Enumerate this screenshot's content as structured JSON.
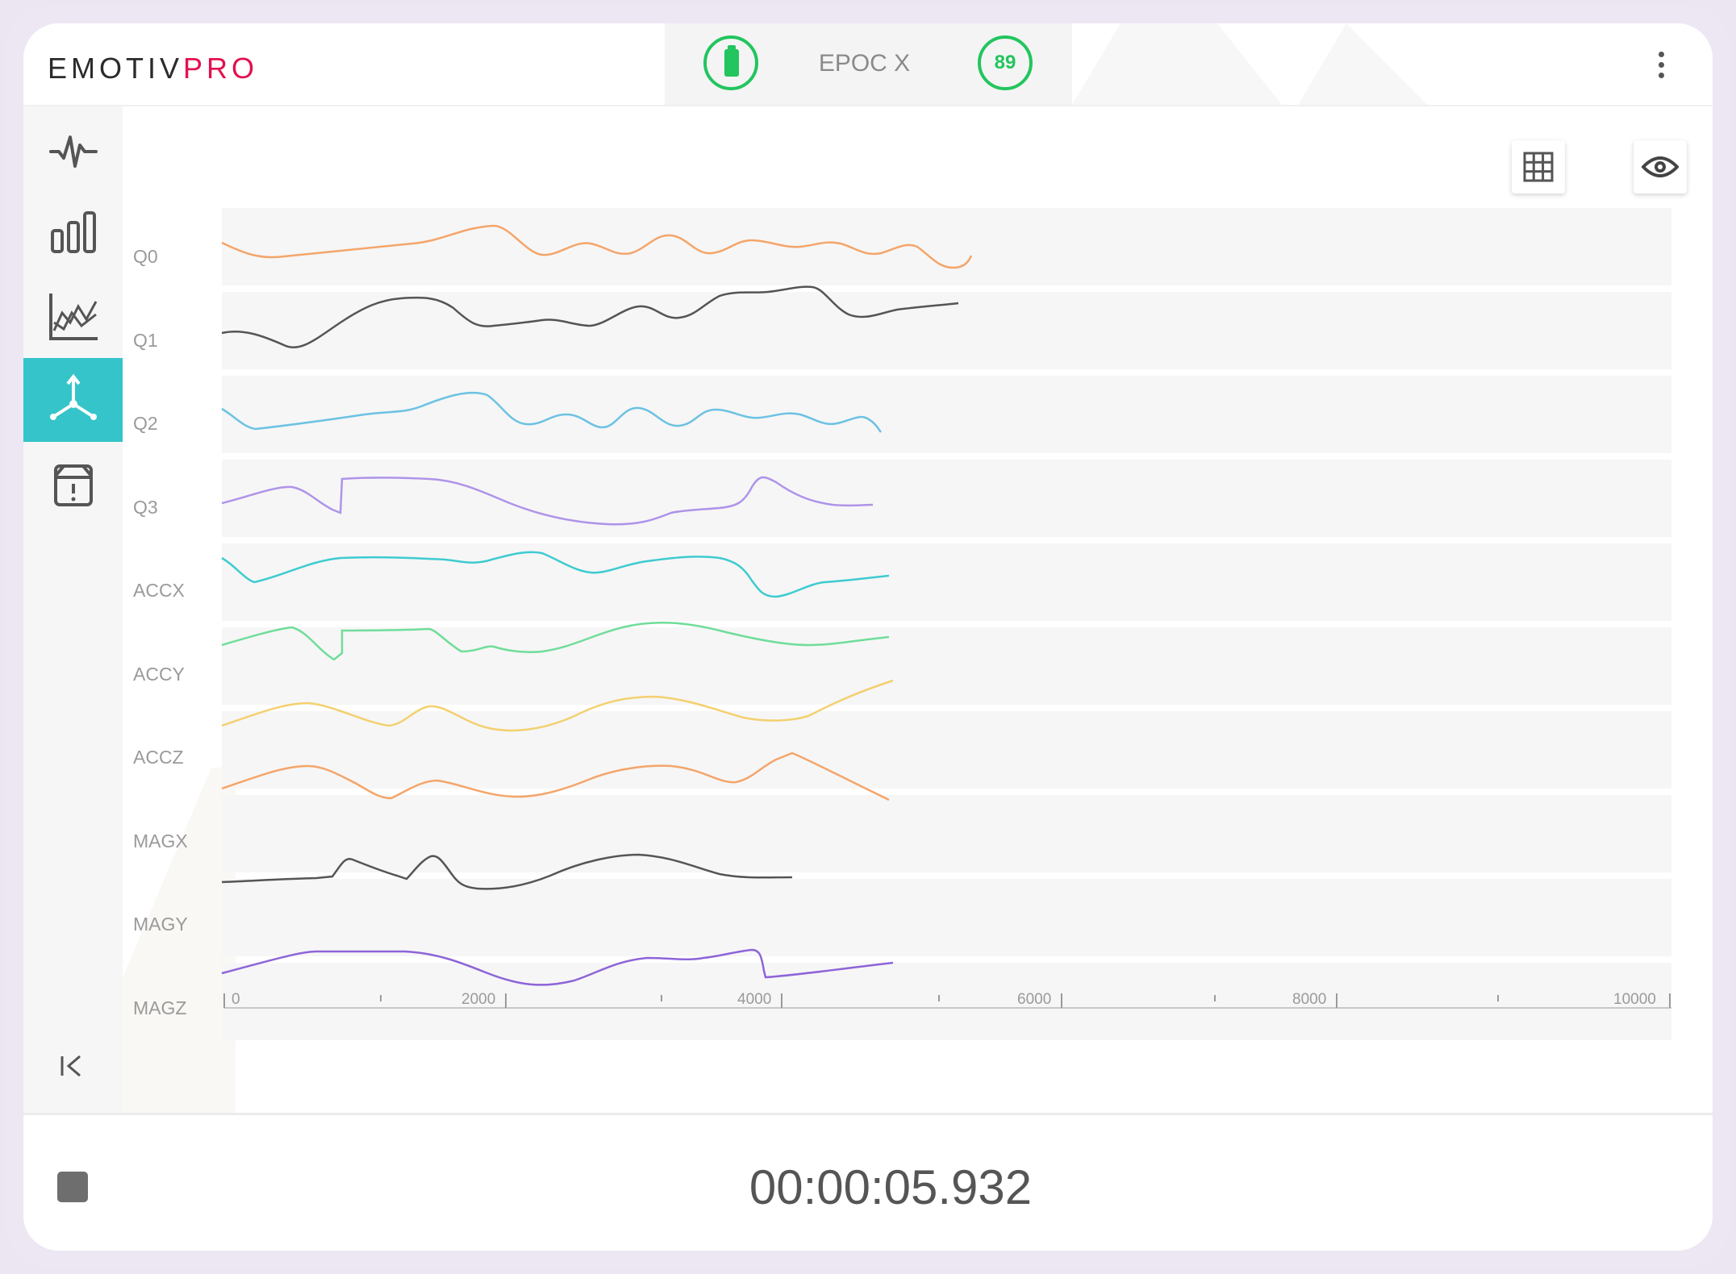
{
  "app": {
    "logo_part1": "EMOTIV",
    "logo_part2": "PRO"
  },
  "device": {
    "name": "EPOC X",
    "signal_value": "89",
    "battery_icon": "battery-icon"
  },
  "sidebar": {
    "items": [
      {
        "name": "eeg-icon",
        "active": false
      },
      {
        "name": "band-power-icon",
        "active": false
      },
      {
        "name": "performance-metrics-icon",
        "active": false
      },
      {
        "name": "motion-icon",
        "active": true
      },
      {
        "name": "markers-icon",
        "active": false
      }
    ],
    "collapse_icon": "collapse-icon"
  },
  "toolbar": {
    "grid_icon": "grid-icon",
    "eye_icon": "eye-icon"
  },
  "footer": {
    "timer": "00:00:05.932",
    "stop_icon": "stop-icon"
  },
  "chart_data": {
    "type": "line",
    "x_ticks": [
      "0",
      "2000",
      "4000",
      "6000",
      "8000",
      "10000"
    ],
    "xlim": [
      0,
      10000
    ],
    "channels": [
      {
        "name": "Q0",
        "color": "#f4a56a"
      },
      {
        "name": "Q1",
        "color": "#555555"
      },
      {
        "name": "Q2",
        "color": "#6cc2e3"
      },
      {
        "name": "Q3",
        "color": "#ae94e9"
      },
      {
        "name": "ACCX",
        "color": "#3ecbd0"
      },
      {
        "name": "ACCY",
        "color": "#70dd9a"
      },
      {
        "name": "ACCZ",
        "color": "#f3d070"
      },
      {
        "name": "MAGX",
        "color": "#f4a56a"
      },
      {
        "name": "MAGY",
        "color": "#555555"
      },
      {
        "name": "MAGZ",
        "color": "#8e64d8"
      }
    ]
  }
}
